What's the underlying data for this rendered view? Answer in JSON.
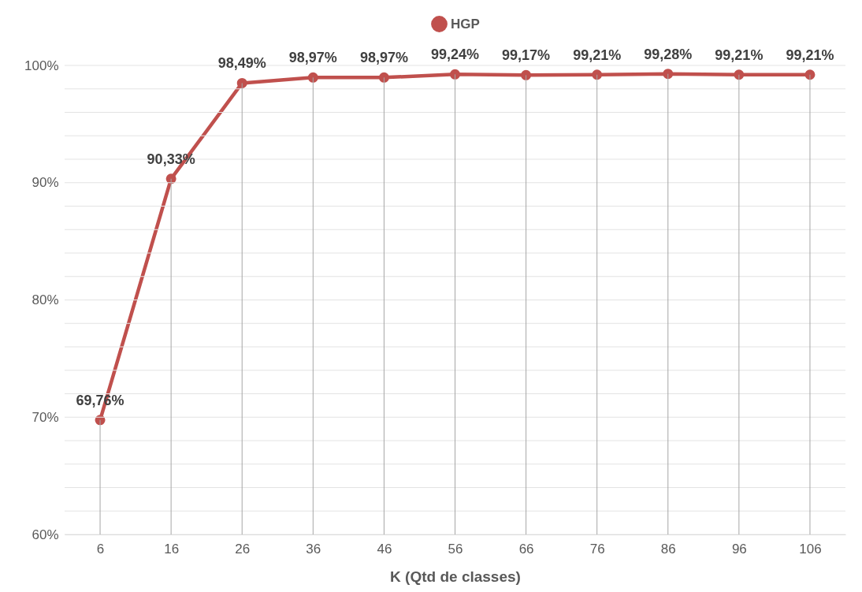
{
  "chart_data": {
    "type": "line",
    "xlabel": "K (Qtd de classes)",
    "categories": [
      "6",
      "16",
      "26",
      "36",
      "46",
      "56",
      "66",
      "76",
      "86",
      "96",
      "106"
    ],
    "series": [
      {
        "name": "HGP",
        "color": "#c0504d",
        "values": [
          69.76,
          90.33,
          98.49,
          98.97,
          98.97,
          99.24,
          99.17,
          99.21,
          99.28,
          99.21,
          99.21
        ],
        "value_labels": [
          "69,76%",
          "90,33%",
          "98,49%",
          "98,97%",
          "98,97%",
          "99,24%",
          "99,17%",
          "99,21%",
          "99,28%",
          "99,21%",
          "99,21%"
        ]
      }
    ],
    "ylim": [
      60,
      100
    ],
    "yticks": [
      {
        "value": 60,
        "label": "60%"
      },
      {
        "value": 62,
        "label": null
      },
      {
        "value": 64,
        "label": null
      },
      {
        "value": 66,
        "label": null
      },
      {
        "value": 68,
        "label": null
      },
      {
        "value": 70,
        "label": "70%"
      },
      {
        "value": 72,
        "label": null
      },
      {
        "value": 74,
        "label": null
      },
      {
        "value": 76,
        "label": null
      },
      {
        "value": 78,
        "label": null
      },
      {
        "value": 80,
        "label": "80%"
      },
      {
        "value": 82,
        "label": null
      },
      {
        "value": 84,
        "label": null
      },
      {
        "value": 86,
        "label": null
      },
      {
        "value": 88,
        "label": null
      },
      {
        "value": 90,
        "label": "90%"
      },
      {
        "value": 92,
        "label": null
      },
      {
        "value": 94,
        "label": null
      },
      {
        "value": 96,
        "label": null
      },
      {
        "value": 98,
        "label": null
      },
      {
        "value": 100,
        "label": "100%"
      }
    ],
    "grid": true,
    "legend": "top",
    "marker": "circle",
    "line_style": "solid"
  }
}
